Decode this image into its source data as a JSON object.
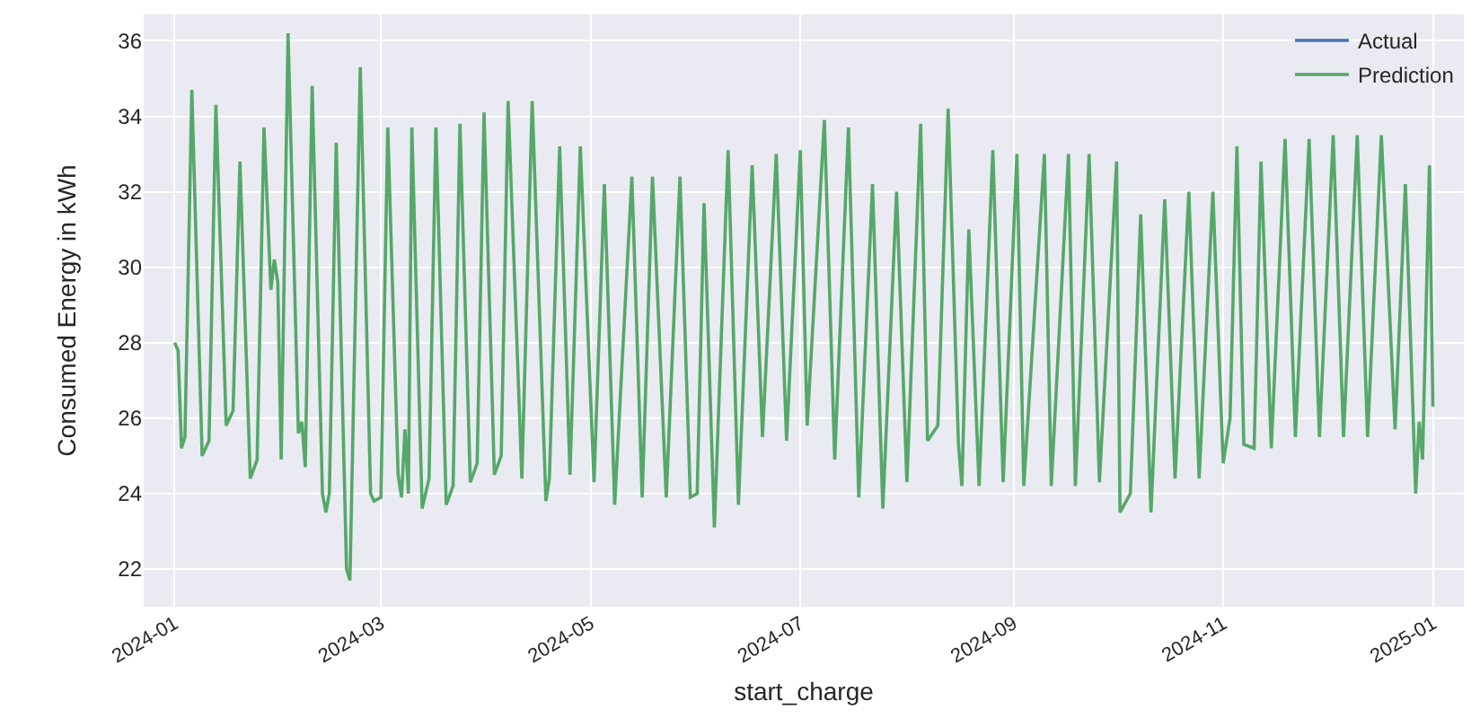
{
  "chart_data": {
    "type": "line",
    "xlabel": "start_charge",
    "ylabel": "Consumed Energy in kWh",
    "x": [
      "2024-01-01",
      "2024-01-02",
      "2024-01-03",
      "2024-01-04",
      "2024-01-06",
      "2024-01-09",
      "2024-01-11",
      "2024-01-13",
      "2024-01-16",
      "2024-01-18",
      "2024-01-20",
      "2024-01-23",
      "2024-01-25",
      "2024-01-27",
      "2024-01-29",
      "2024-01-30",
      "2024-01-31",
      "2024-02-01",
      "2024-02-03",
      "2024-02-06",
      "2024-02-07",
      "2024-02-08",
      "2024-02-10",
      "2024-02-13",
      "2024-02-14",
      "2024-02-15",
      "2024-02-17",
      "2024-02-20",
      "2024-02-21",
      "2024-02-24",
      "2024-02-27",
      "2024-02-28",
      "2024-03-01",
      "2024-03-03",
      "2024-03-06",
      "2024-03-07",
      "2024-03-08",
      "2024-03-09",
      "2024-03-10",
      "2024-03-13",
      "2024-03-15",
      "2024-03-17",
      "2024-03-20",
      "2024-03-22",
      "2024-03-24",
      "2024-03-27",
      "2024-03-29",
      "2024-03-31",
      "2024-04-03",
      "2024-04-05",
      "2024-04-07",
      "2024-04-11",
      "2024-04-14",
      "2024-04-18",
      "2024-04-19",
      "2024-04-22",
      "2024-04-25",
      "2024-04-28",
      "2024-05-02",
      "2024-05-05",
      "2024-05-08",
      "2024-05-13",
      "2024-05-16",
      "2024-05-19",
      "2024-05-23",
      "2024-05-27",
      "2024-05-30",
      "2024-06-01",
      "2024-06-03",
      "2024-06-06",
      "2024-06-10",
      "2024-06-13",
      "2024-06-17",
      "2024-06-20",
      "2024-06-24",
      "2024-06-27",
      "2024-07-01",
      "2024-07-03",
      "2024-07-08",
      "2024-07-11",
      "2024-07-15",
      "2024-07-18",
      "2024-07-22",
      "2024-07-25",
      "2024-07-29",
      "2024-08-01",
      "2024-08-05",
      "2024-08-07",
      "2024-08-10",
      "2024-08-13",
      "2024-08-16",
      "2024-08-17",
      "2024-08-19",
      "2024-08-22",
      "2024-08-26",
      "2024-08-29",
      "2024-09-02",
      "2024-09-04",
      "2024-09-10",
      "2024-09-12",
      "2024-09-17",
      "2024-09-19",
      "2024-09-23",
      "2024-09-26",
      "2024-10-01",
      "2024-10-02",
      "2024-10-05",
      "2024-10-08",
      "2024-10-11",
      "2024-10-15",
      "2024-10-18",
      "2024-10-22",
      "2024-10-25",
      "2024-10-29",
      "2024-11-01",
      "2024-11-03",
      "2024-11-05",
      "2024-11-07",
      "2024-11-10",
      "2024-11-12",
      "2024-11-15",
      "2024-11-19",
      "2024-11-22",
      "2024-11-26",
      "2024-11-29",
      "2024-12-03",
      "2024-12-06",
      "2024-12-10",
      "2024-12-13",
      "2024-12-17",
      "2024-12-21",
      "2024-12-24",
      "2024-12-27",
      "2024-12-28",
      "2024-12-29",
      "2024-12-31",
      "2025-01-01"
    ],
    "series": [
      {
        "name": "Actual",
        "color": "#4c72b0",
        "values": [
          null,
          null,
          null,
          null,
          null,
          null,
          null,
          null,
          null,
          null,
          null,
          null,
          null,
          null,
          null,
          null,
          null,
          null,
          null,
          null,
          null,
          null,
          null,
          null,
          null,
          null,
          null,
          null,
          null,
          null,
          null,
          null,
          null,
          null,
          null,
          null,
          null,
          null,
          null,
          null,
          null,
          null,
          null,
          null,
          null,
          null,
          null,
          null,
          null,
          null,
          null,
          null,
          null,
          null,
          null,
          null,
          null,
          null,
          null,
          null,
          null,
          null,
          null,
          null,
          null,
          null,
          null,
          null,
          null,
          null,
          null,
          null,
          null,
          null,
          null,
          null,
          null,
          null,
          null,
          null,
          null,
          null,
          null,
          null,
          null,
          null,
          null,
          null,
          null,
          null,
          null,
          null,
          null,
          null,
          null,
          null,
          null,
          null,
          null,
          null,
          null,
          null,
          null,
          null,
          null,
          null,
          null,
          null,
          null,
          null,
          null,
          null,
          null,
          null,
          null,
          null,
          null,
          null,
          null,
          null,
          null,
          null,
          null,
          null,
          null,
          null,
          null,
          null,
          null,
          null,
          null,
          null,
          null,
          null,
          null,
          null,
          null
        ]
      },
      {
        "name": "Prediction",
        "color": "#55a868",
        "values": [
          28.0,
          27.8,
          25.2,
          25.5,
          34.7,
          25.0,
          25.4,
          34.3,
          25.8,
          26.2,
          32.8,
          24.4,
          24.9,
          33.7,
          29.4,
          30.2,
          29.6,
          24.9,
          36.2,
          25.6,
          25.9,
          24.7,
          34.8,
          24.0,
          23.5,
          24.0,
          33.3,
          22.0,
          21.7,
          35.3,
          24.0,
          23.8,
          23.9,
          33.7,
          24.5,
          23.9,
          25.7,
          24.0,
          33.7,
          23.6,
          24.4,
          33.7,
          23.7,
          24.2,
          33.8,
          24.3,
          24.8,
          34.1,
          24.5,
          25.0,
          34.4,
          24.4,
          34.4,
          23.8,
          24.4,
          33.2,
          24.5,
          33.2,
          24.3,
          32.2,
          23.7,
          32.4,
          23.9,
          32.4,
          23.9,
          32.4,
          23.9,
          24.0,
          31.7,
          23.1,
          33.1,
          23.7,
          32.7,
          25.5,
          33.0,
          25.4,
          33.1,
          25.8,
          33.9,
          24.9,
          33.7,
          23.9,
          32.2,
          23.6,
          32.0,
          24.3,
          33.8,
          25.4,
          25.8,
          34.2,
          25.3,
          24.2,
          31.0,
          24.2,
          33.1,
          24.3,
          33.0,
          24.2,
          33.0,
          24.2,
          33.0,
          24.2,
          33.0,
          24.3,
          32.8,
          23.5,
          24.0,
          31.4,
          23.5,
          31.8,
          24.4,
          32.0,
          24.4,
          32.0,
          24.8,
          26.0,
          33.2,
          25.3,
          25.2,
          32.8,
          25.2,
          33.4,
          25.5,
          33.4,
          25.5,
          33.5,
          25.5,
          33.5,
          25.5,
          33.5,
          25.7,
          32.2,
          24.0,
          25.9,
          24.9,
          32.7,
          26.3
        ]
      }
    ],
    "xlim": [
      "2023-12-23",
      "2025-01-10"
    ],
    "xticks": [
      {
        "value": "2024-01-01",
        "label": "2024-01"
      },
      {
        "value": "2024-03-01",
        "label": "2024-03"
      },
      {
        "value": "2024-05-01",
        "label": "2024-05"
      },
      {
        "value": "2024-07-01",
        "label": "2024-07"
      },
      {
        "value": "2024-09-01",
        "label": "2024-09"
      },
      {
        "value": "2024-11-01",
        "label": "2024-11"
      },
      {
        "value": "2025-01-01",
        "label": "2025-01"
      }
    ],
    "ylim": [
      21.0,
      36.7
    ],
    "yticks": [
      22,
      24,
      26,
      28,
      30,
      32,
      34,
      36
    ],
    "grid": true,
    "legend": "top right",
    "marker": "none",
    "line_style": "solid"
  }
}
